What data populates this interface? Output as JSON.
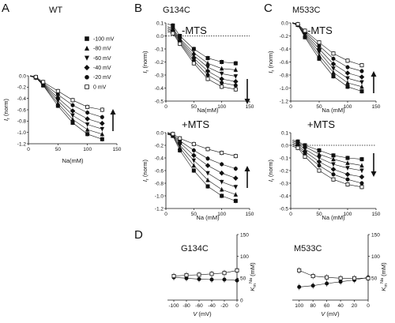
{
  "figure": {
    "panel_letters": [
      "A",
      "B",
      "C",
      "D"
    ]
  },
  "legend": {
    "entries": [
      {
        "label": "-100 mV",
        "marker": "square-filled"
      },
      {
        "label": "-80 mV",
        "marker": "triangle-filled"
      },
      {
        "label": "-60 mV",
        "marker": "triangle-down-filled"
      },
      {
        "label": "-40 mV",
        "marker": "diamond-filled"
      },
      {
        "label": "-20 mV",
        "marker": "circle-filled"
      },
      {
        "label": "0 mV",
        "marker": "square-open"
      }
    ]
  },
  "chart_data": [
    {
      "id": "A",
      "type": "scatter",
      "title": "WT",
      "xlabel": "Na(mM)",
      "ylabel": "I_r (norm)",
      "xlim": [
        0,
        150
      ],
      "ylim": [
        -1.2,
        0.0
      ],
      "xticks": [
        "0",
        "50",
        "100",
        "150"
      ],
      "yticks": [
        "0.0",
        "-0.2",
        "-0.4",
        "-0.6",
        "-0.8",
        "-1.0",
        "-1.2"
      ],
      "arrow": "up",
      "x": [
        12.5,
        25,
        50,
        75,
        100,
        125
      ],
      "series": [
        {
          "name": "-100 mV",
          "values": [
            -0.03,
            -0.17,
            -0.53,
            -0.83,
            -1.03,
            -1.12
          ]
        },
        {
          "name": "-80 mV",
          "values": [
            -0.03,
            -0.16,
            -0.49,
            -0.77,
            -0.95,
            -1.03
          ]
        },
        {
          "name": "-60 mV",
          "values": [
            -0.03,
            -0.15,
            -0.44,
            -0.7,
            -0.86,
            -0.94
          ]
        },
        {
          "name": "-40 mV",
          "values": [
            -0.03,
            -0.14,
            -0.39,
            -0.62,
            -0.76,
            -0.84
          ]
        },
        {
          "name": "-20 mV",
          "values": [
            -0.03,
            -0.13,
            -0.33,
            -0.52,
            -0.65,
            -0.73
          ]
        },
        {
          "name": "0 mV",
          "values": [
            -0.02,
            -0.11,
            -0.27,
            -0.43,
            -0.55,
            -0.6
          ]
        }
      ]
    },
    {
      "id": "B-top",
      "type": "scatter",
      "title": "G134C",
      "annotation": "-MTS",
      "xlabel": "Na(mM)",
      "ylabel": "I_r (norm)",
      "xlim": [
        0,
        150
      ],
      "ylim": [
        -0.5,
        0.1
      ],
      "xticks": [
        "0",
        "50",
        "100",
        "150"
      ],
      "yticks": [
        "0.1",
        "0.0",
        "-0.1",
        "-0.2",
        "-0.3",
        "-0.4",
        "-0.5"
      ],
      "arrow": "down",
      "x": [
        12.5,
        25,
        50,
        75,
        100,
        125
      ],
      "series": [
        {
          "name": "-100 mV",
          "values": [
            0.08,
            0.0,
            -0.1,
            -0.17,
            -0.2,
            -0.21
          ]
        },
        {
          "name": "-80 mV",
          "values": [
            0.06,
            -0.02,
            -0.13,
            -0.21,
            -0.25,
            -0.26
          ]
        },
        {
          "name": "-60 mV",
          "values": [
            0.05,
            -0.03,
            -0.15,
            -0.24,
            -0.29,
            -0.31
          ]
        },
        {
          "name": "-40 mV",
          "values": [
            0.04,
            -0.04,
            -0.17,
            -0.27,
            -0.33,
            -0.35
          ]
        },
        {
          "name": "-20 mV",
          "values": [
            0.03,
            -0.05,
            -0.19,
            -0.3,
            -0.36,
            -0.38
          ]
        },
        {
          "name": "0 mV",
          "values": [
            0.02,
            -0.06,
            -0.21,
            -0.33,
            -0.39,
            -0.41
          ]
        }
      ]
    },
    {
      "id": "B-bottom",
      "type": "scatter",
      "annotation": "+MTS",
      "xlabel": "Na (mM)",
      "ylabel": "I_r (norm)",
      "xlim": [
        0,
        150
      ],
      "ylim": [
        -1.2,
        0.0
      ],
      "xticks": [
        "0",
        "50",
        "100",
        "150"
      ],
      "yticks": [
        "0.0",
        "-0.2",
        "-0.4",
        "-0.6",
        "-0.8",
        "-1.0",
        "-1.2"
      ],
      "arrow": "up",
      "x": [
        12.5,
        25,
        50,
        75,
        100,
        125
      ],
      "series": [
        {
          "name": "-100 mV",
          "values": [
            -0.05,
            -0.28,
            -0.6,
            -0.85,
            -1.0,
            -1.08
          ]
        },
        {
          "name": "-80 mV",
          "values": [
            -0.05,
            -0.24,
            -0.52,
            -0.75,
            -0.9,
            -0.98
          ]
        },
        {
          "name": "-60 mV",
          "values": [
            -0.04,
            -0.2,
            -0.44,
            -0.64,
            -0.78,
            -0.86
          ]
        },
        {
          "name": "-40 mV",
          "values": [
            -0.04,
            -0.16,
            -0.36,
            -0.52,
            -0.64,
            -0.72
          ]
        },
        {
          "name": "-20 mV",
          "values": [
            -0.03,
            -0.13,
            -0.28,
            -0.41,
            -0.5,
            -0.57
          ]
        },
        {
          "name": "0 mV",
          "values": [
            -0.02,
            -0.09,
            -0.18,
            -0.26,
            -0.32,
            -0.37
          ]
        }
      ]
    },
    {
      "id": "C-top",
      "type": "scatter",
      "title": "M533C",
      "annotation": "-MTS",
      "xlabel": "Na (mM)",
      "ylabel": "I_r (norm)",
      "xlim": [
        0,
        150
      ],
      "ylim": [
        -1.2,
        0.0
      ],
      "xticks": [
        "0",
        "50",
        "100",
        "150"
      ],
      "yticks": [
        "0.0",
        "-0.2",
        "-0.4",
        "-0.6",
        "-0.8",
        "-1.0",
        "-1.2"
      ],
      "arrow": "up",
      "x": [
        12.5,
        25,
        50,
        75,
        100,
        125
      ],
      "series": [
        {
          "name": "-100 mV",
          "values": [
            -0.03,
            -0.22,
            -0.55,
            -0.82,
            -0.98,
            -1.05
          ]
        },
        {
          "name": "-80 mV",
          "values": [
            -0.03,
            -0.2,
            -0.5,
            -0.76,
            -0.92,
            -0.98
          ]
        },
        {
          "name": "-60 mV",
          "values": [
            -0.03,
            -0.18,
            -0.45,
            -0.7,
            -0.85,
            -0.91
          ]
        },
        {
          "name": "-40 mV",
          "values": [
            -0.03,
            -0.16,
            -0.4,
            -0.63,
            -0.77,
            -0.83
          ]
        },
        {
          "name": "-20 mV",
          "values": [
            -0.02,
            -0.14,
            -0.35,
            -0.55,
            -0.68,
            -0.74
          ]
        },
        {
          "name": "0 mV",
          "values": [
            -0.02,
            -0.12,
            -0.3,
            -0.47,
            -0.58,
            -0.65
          ]
        }
      ]
    },
    {
      "id": "C-bottom",
      "type": "scatter",
      "annotation": "+MTS",
      "xlabel": "Na (mM)",
      "ylabel": "I_r (norm)",
      "xlim": [
        0,
        150
      ],
      "ylim": [
        -0.5,
        0.1
      ],
      "xticks": [
        "0",
        "50",
        "100",
        "150"
      ],
      "yticks": [
        "0.1",
        "0.0",
        "-0.1",
        "-0.2",
        "-0.3",
        "-0.4",
        "-0.5"
      ],
      "arrow": "down",
      "x": [
        12.5,
        25,
        50,
        75,
        100,
        125
      ],
      "series": [
        {
          "name": "-100 mV",
          "values": [
            0.03,
            0.0,
            -0.04,
            -0.08,
            -0.1,
            -0.11
          ]
        },
        {
          "name": "-80 mV",
          "values": [
            0.02,
            -0.01,
            -0.07,
            -0.11,
            -0.14,
            -0.16
          ]
        },
        {
          "name": "-60 mV",
          "values": [
            0.01,
            -0.03,
            -0.1,
            -0.15,
            -0.18,
            -0.2
          ]
        },
        {
          "name": "-40 mV",
          "values": [
            0.0,
            -0.05,
            -0.13,
            -0.19,
            -0.23,
            -0.25
          ]
        },
        {
          "name": "-20 mV",
          "values": [
            -0.01,
            -0.07,
            -0.16,
            -0.23,
            -0.27,
            -0.3
          ]
        },
        {
          "name": "0 mV",
          "values": [
            -0.02,
            -0.09,
            -0.2,
            -0.27,
            -0.31,
            -0.33
          ]
        }
      ]
    },
    {
      "id": "D-left",
      "type": "scatter",
      "title": "G134C",
      "xlabel": "V (mV)",
      "ylabel": "K_m^Na (mM)",
      "xlim": [
        -110,
        0
      ],
      "ylim": [
        0,
        150
      ],
      "xticks": [
        "-100",
        "-80",
        "-60",
        "-40",
        "-20",
        "0"
      ],
      "yticks": [
        "0",
        "50",
        "100",
        "150"
      ],
      "x": [
        -100,
        -80,
        -60,
        -40,
        -20,
        0
      ],
      "series": [
        {
          "name": "-MTS",
          "marker": "circle-filled",
          "values": [
            52,
            50,
            48,
            47,
            47,
            45
          ]
        },
        {
          "name": "+MTS",
          "marker": "square-open",
          "values": [
            55,
            57,
            58,
            60,
            62,
            68
          ]
        }
      ]
    },
    {
      "id": "D-right",
      "type": "scatter",
      "title": "M533C",
      "xlabel": "V (mV)",
      "ylabel": "K_m^Na (mM)",
      "xlim": [
        110,
        0
      ],
      "ylim": [
        0,
        150
      ],
      "xticks": [
        "100",
        "80",
        "60",
        "40",
        "20",
        "0"
      ],
      "yticks": [
        "50",
        "100",
        "150"
      ],
      "x": [
        100,
        80,
        60,
        40,
        20,
        0
      ],
      "series": [
        {
          "name": "-MTS",
          "marker": "circle-filled",
          "values": [
            30,
            33,
            38,
            42,
            46,
            52
          ]
        },
        {
          "name": "+MTS",
          "marker": "square-open",
          "values": [
            68,
            55,
            52,
            50,
            50,
            50
          ]
        }
      ]
    }
  ]
}
